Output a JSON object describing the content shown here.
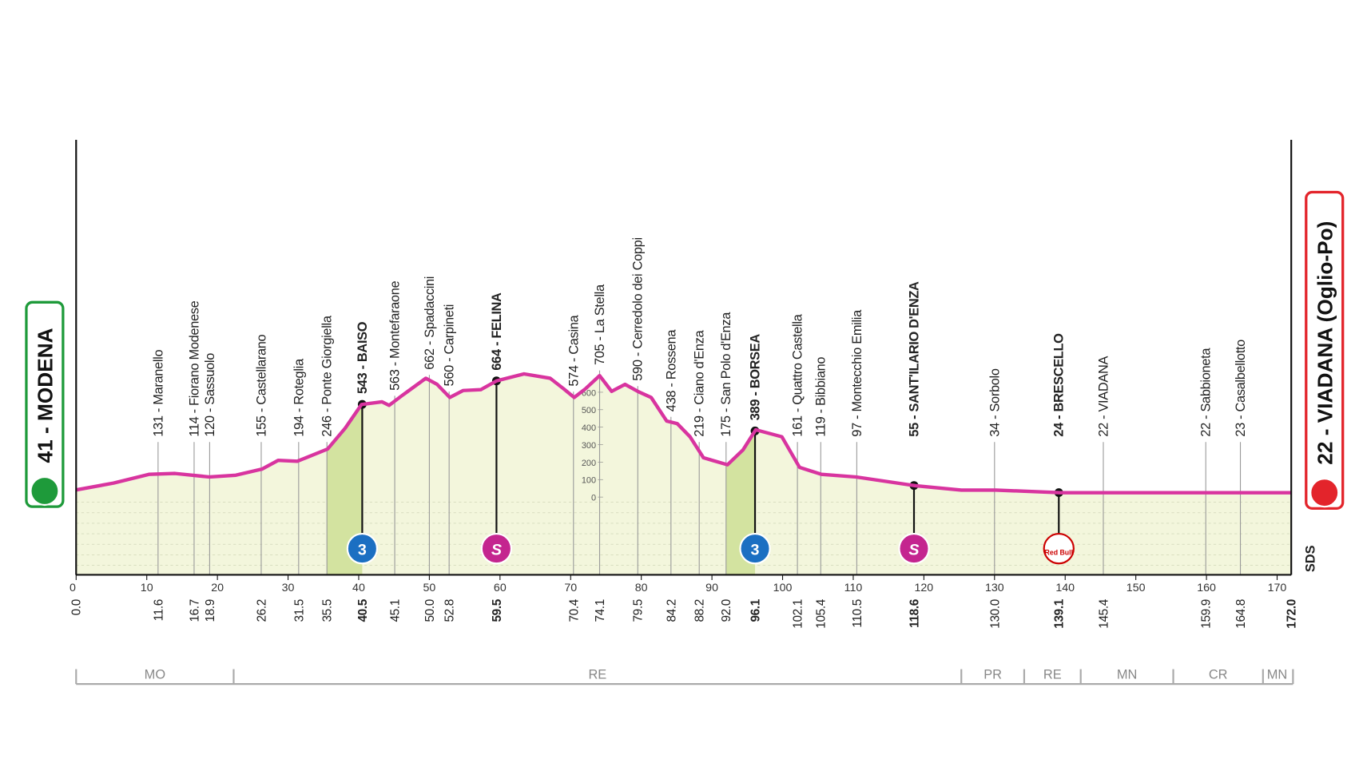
{
  "chart_data": {
    "type": "line",
    "xlim": [
      0,
      172
    ],
    "ylim": [
      -445,
      2045
    ],
    "xticks": [
      0,
      10,
      20,
      30,
      40,
      50,
      60,
      70,
      80,
      90,
      100,
      110,
      120,
      130,
      140,
      150,
      160,
      170
    ],
    "yticks": [
      0,
      100,
      200,
      300,
      400,
      500,
      600
    ],
    "color": "#d8349f",
    "fill": "#f3f6dc",
    "climb_fill": "#d3e3a0",
    "x": [
      0,
      5.3,
      10.3,
      14,
      18.9,
      22.6,
      26.3,
      28.6,
      31.3,
      35.6,
      38.1,
      40.4,
      43.3,
      44.3,
      46.1,
      49.5,
      51.1,
      52.9,
      54.8,
      57.3,
      59.5,
      63.4,
      67.1,
      69,
      70.5,
      72.1,
      74.1,
      75.8,
      77.7,
      79.5,
      81.4,
      83.6,
      85.1,
      86.9,
      88.8,
      92.2,
      94.4,
      96.2,
      99.9,
      102.4,
      105.5,
      110.4,
      118.8,
      125.3,
      130.2,
      139.4,
      145.7,
      159.9,
      172
    ],
    "values": [
      41,
      80,
      130,
      135,
      115,
      125,
      160,
      210,
      205,
      275,
      395,
      530,
      545,
      525,
      580,
      680,
      645,
      570,
      610,
      615,
      665,
      705,
      680,
      620,
      570,
      620,
      695,
      605,
      645,
      605,
      570,
      435,
      420,
      345,
      225,
      185,
      270,
      385,
      345,
      170,
      130,
      115,
      65,
      40,
      40,
      25,
      25,
      25,
      25
    ],
    "start": {
      "label": "41 - MODENA",
      "km": {
        "value": 0,
        "label": "0.0"
      },
      "color": "#1e9a3a"
    },
    "finish": {
      "label": "22 - VIADANA (Oglio-Po)",
      "km": {
        "value": 172,
        "label": "172.0"
      },
      "color": "#e3242b"
    },
    "waypoints": [
      {
        "label": "131 - Maranello",
        "km": 11.6
      },
      {
        "label": "114 - Fiorano Modenese",
        "km": 16.7
      },
      {
        "label": "120 - Sassuolo",
        "km": 18.9
      },
      {
        "label": "155 - Castellarano",
        "km": 26.2
      },
      {
        "label": "194 - Roteglia",
        "km": 31.5
      },
      {
        "label": "246 - Ponte Giorgiella",
        "km": 35.5
      },
      {
        "label": "543 - BAISO",
        "km": 40.5,
        "bold": true,
        "icon": "kom",
        "badge": "3"
      },
      {
        "label": "563 - Montefaraone",
        "km": 45.1
      },
      {
        "label": "662 - Spadaccini",
        "km": {
          "value": 50,
          "label": "50.0"
        }
      },
      {
        "label": "560 - Carpineti",
        "km": 52.8
      },
      {
        "label": "664 - FELINA",
        "km": 59.5,
        "bold": true,
        "icon": "sprint",
        "badge": "S"
      },
      {
        "label": "574 - Casina",
        "km": 70.4
      },
      {
        "label": "705 - La Stella",
        "km": 74.1
      },
      {
        "label": "590 - Cerredolo dei Coppi",
        "km": 79.5
      },
      {
        "label": "438 - Rossena",
        "km": 84.2
      },
      {
        "label": "219 - Ciano d'Enza",
        "km": 88.2
      },
      {
        "label": "175 - San Polo d'Enza",
        "km": {
          "value": 92,
          "label": "92.0"
        }
      },
      {
        "label": "389 - BORSEA",
        "km": 96.1,
        "bold": true,
        "icon": "kom",
        "badge": "3"
      },
      {
        "label": "161 - Quattro Castella",
        "km": 102.1
      },
      {
        "label": "119 - Bibbiano",
        "km": 105.4
      },
      {
        "label": "97 - Montecchio Emilia",
        "km": 110.5
      },
      {
        "label": "55 - SANT'ILARIO D'ENZA",
        "km": 118.6,
        "bold": true,
        "icon": "sprint",
        "badge": "S"
      },
      {
        "label": "34 - Sorbolo",
        "km": {
          "value": 130,
          "label": "130.0"
        }
      },
      {
        "label": "24 - BRESCELLO",
        "km": 139.1,
        "bold": true,
        "icon": "bonus",
        "badge": "Red Bull"
      },
      {
        "label": "22 - VIADANA",
        "km": 145.4
      },
      {
        "label": "22 - Sabbioneta",
        "km": 159.9
      },
      {
        "label": "23 - Casalbellotto",
        "km": 164.8
      }
    ],
    "provinces": [
      {
        "name": "MO",
        "from": 0,
        "to": 22.3
      },
      {
        "name": "RE",
        "from": 22.3,
        "to": 125.3
      },
      {
        "name": "PR",
        "from": 125.3,
        "to": 134.2
      },
      {
        "name": "RE",
        "from": 134.2,
        "to": 142.2
      },
      {
        "name": "MN",
        "from": 142.2,
        "to": 155.3
      },
      {
        "name": "CR",
        "from": 155.3,
        "to": 168
      },
      {
        "name": "MN",
        "from": 168,
        "to": 172
      }
    ],
    "logo": "SDS"
  }
}
